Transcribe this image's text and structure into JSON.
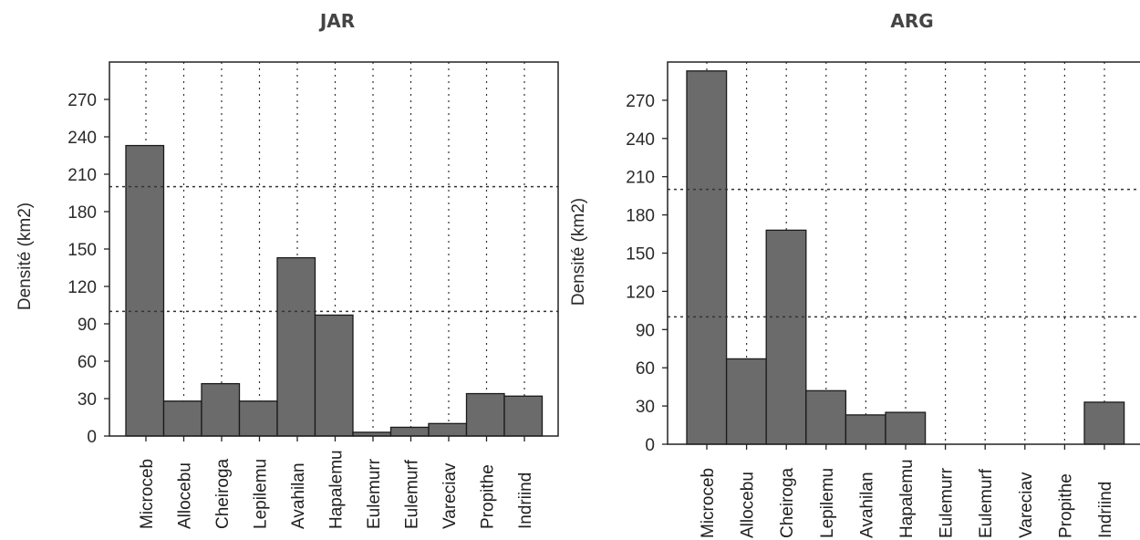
{
  "chart_data": [
    {
      "type": "bar",
      "title": "JAR",
      "ylabel": "Densité (km2)",
      "xlabel": "",
      "ylim": [
        0,
        300
      ],
      "yticks": [
        0,
        30,
        60,
        90,
        120,
        150,
        180,
        210,
        240,
        270
      ],
      "reference_lines": [
        100,
        200
      ],
      "grid": "vertical dotted",
      "categories": [
        "Microceb",
        "Allocebu",
        "Cheiroga",
        "Lepilemu",
        "Avahilan",
        "Hapalemu",
        "Eulemurr",
        "Eulemurf",
        "Vareciav",
        "Propithe",
        "Indriind"
      ],
      "values": [
        233,
        28,
        42,
        28,
        143,
        97,
        3,
        7,
        10,
        34,
        32
      ]
    },
    {
      "type": "bar",
      "title": "ARG",
      "ylabel": "Densité (km2)",
      "xlabel": "",
      "ylim": [
        0,
        300
      ],
      "yticks": [
        0,
        30,
        60,
        90,
        120,
        150,
        180,
        210,
        240,
        270
      ],
      "reference_lines": [
        100,
        200
      ],
      "grid": "vertical dotted",
      "categories": [
        "Microceb",
        "Allocebu",
        "Cheiroga",
        "Lepilemu",
        "Avahilan",
        "Hapalemu",
        "Eulemurr",
        "Eulemurf",
        "Vareciav",
        "Propithe",
        "Indriind"
      ],
      "values": [
        293,
        67,
        168,
        42,
        23,
        25,
        0,
        0,
        0,
        0,
        33
      ]
    }
  ]
}
